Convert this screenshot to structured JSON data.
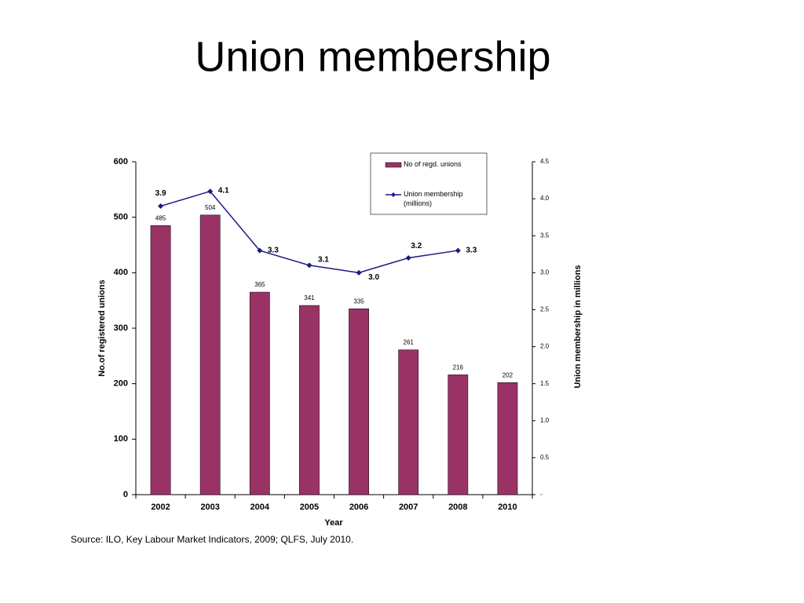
{
  "chart_data": {
    "type": "bar",
    "title": "Union membership",
    "x_label": "Year",
    "y_label": "No.of registered unions",
    "y2_label": "Union membership in millions",
    "source": "Source: ILO, Key Labour Market Indicators, 2009; QLFS, July 2010.",
    "categories": [
      "2002",
      "2003",
      "2004",
      "2005",
      "2006",
      "2007",
      "2008",
      "2010"
    ],
    "series": [
      {
        "name": "No of regd. unions",
        "type": "bar",
        "color": "#993366",
        "values": [
          485,
          504,
          365,
          341,
          335,
          261,
          216,
          202
        ]
      },
      {
        "name": "Union membership (millions)",
        "type": "line",
        "axis": "y2",
        "color": "#1a1a80",
        "values": [
          3.9,
          4.1,
          3.3,
          3.1,
          3.0,
          3.2,
          3.3,
          null
        ],
        "value_labels": [
          "3.9",
          "4.1",
          "3.3",
          "3.1",
          "3.0",
          "3.2",
          "3.3",
          null
        ]
      }
    ],
    "ylim": [
      0,
      600
    ],
    "yticks": [
      0,
      100,
      200,
      300,
      400,
      500,
      600
    ],
    "y2lim": [
      0,
      4.5
    ],
    "y2ticks": [
      {
        "value": 0,
        "label": "-"
      },
      0.5,
      {
        "value": 1,
        "label": "1.0"
      },
      1.5,
      {
        "value": 2,
        "label": "2.0"
      },
      2.5,
      {
        "value": 3,
        "label": "3.0"
      },
      3.5,
      {
        "value": 4,
        "label": "4.0"
      },
      4.5
    ],
    "legend": "upper right"
  }
}
